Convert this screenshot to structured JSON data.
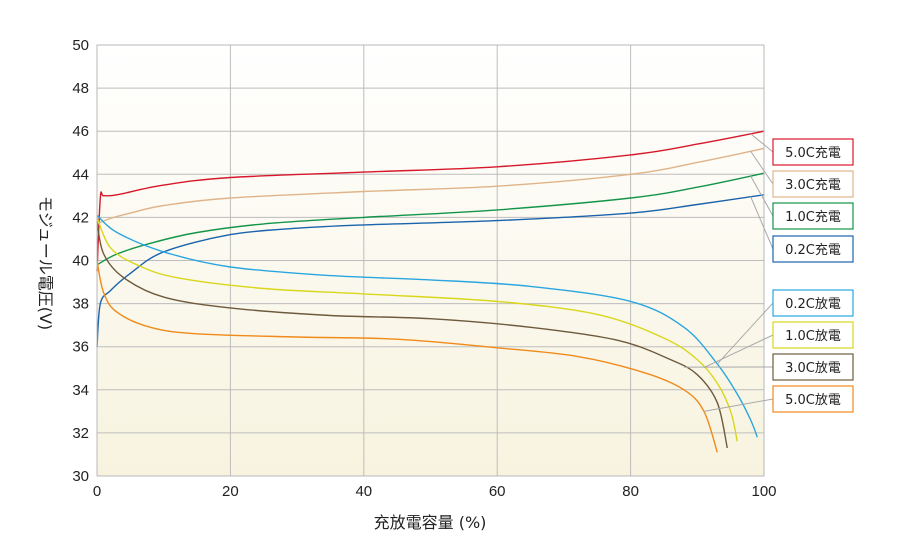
{
  "chart_data": {
    "type": "line",
    "xlabel": "充放電容量 (%)",
    "ylabel": "モジュール電圧(V)",
    "xlim": [
      0,
      100
    ],
    "ylim": [
      30,
      50
    ],
    "x_ticks": [
      0,
      20,
      40,
      60,
      80,
      100
    ],
    "y_ticks": [
      30,
      32,
      34,
      36,
      38,
      40,
      42,
      44,
      46,
      48,
      50
    ],
    "grid": true,
    "legend_position": "right",
    "series": [
      {
        "name": "5.0C充電",
        "color": "#d7182a",
        "group": "charge",
        "points": [
          [
            0,
            39.5
          ],
          [
            0.5,
            42.9
          ],
          [
            1,
            43.0
          ],
          [
            3,
            43.05
          ],
          [
            10,
            43.5
          ],
          [
            20,
            43.85
          ],
          [
            40,
            44.1
          ],
          [
            60,
            44.35
          ],
          [
            80,
            44.9
          ],
          [
            90,
            45.4
          ],
          [
            100,
            46.0
          ]
        ]
      },
      {
        "name": "3.0C充電",
        "color": "#e0b48a",
        "group": "charge",
        "points": [
          [
            0,
            41.7
          ],
          [
            2,
            41.95
          ],
          [
            5,
            42.2
          ],
          [
            10,
            42.55
          ],
          [
            20,
            42.9
          ],
          [
            40,
            43.2
          ],
          [
            60,
            43.45
          ],
          [
            80,
            44.0
          ],
          [
            90,
            44.55
          ],
          [
            100,
            45.2
          ]
        ]
      },
      {
        "name": "1.0C充電",
        "color": "#12954a",
        "group": "charge",
        "points": [
          [
            0,
            39.8
          ],
          [
            3,
            40.3
          ],
          [
            8,
            40.8
          ],
          [
            15,
            41.3
          ],
          [
            25,
            41.7
          ],
          [
            40,
            42.0
          ],
          [
            60,
            42.35
          ],
          [
            80,
            42.9
          ],
          [
            90,
            43.4
          ],
          [
            100,
            44.05
          ]
        ]
      },
      {
        "name": "0.2C充電",
        "color": "#1a63ad",
        "group": "charge",
        "points": [
          [
            0,
            36.0
          ],
          [
            0.5,
            38.0
          ],
          [
            2,
            38.6
          ],
          [
            5,
            39.4
          ],
          [
            10,
            40.4
          ],
          [
            20,
            41.2
          ],
          [
            30,
            41.5
          ],
          [
            40,
            41.65
          ],
          [
            60,
            41.85
          ],
          [
            80,
            42.2
          ],
          [
            90,
            42.6
          ],
          [
            100,
            43.05
          ]
        ]
      },
      {
        "name": "0.2C放電",
        "color": "#2aa6df",
        "group": "discharge",
        "points": [
          [
            0,
            42.1
          ],
          [
            3,
            41.3
          ],
          [
            10,
            40.4
          ],
          [
            20,
            39.7
          ],
          [
            35,
            39.3
          ],
          [
            50,
            39.1
          ],
          [
            65,
            38.8
          ],
          [
            80,
            38.1
          ],
          [
            88,
            36.9
          ],
          [
            93,
            35.2
          ],
          [
            96,
            33.8
          ],
          [
            98,
            32.6
          ],
          [
            99,
            31.8
          ]
        ]
      },
      {
        "name": "1.0C放電",
        "color": "#d9d61c",
        "group": "discharge",
        "points": [
          [
            0,
            42.0
          ],
          [
            2,
            40.6
          ],
          [
            6,
            39.8
          ],
          [
            12,
            39.2
          ],
          [
            25,
            38.7
          ],
          [
            40,
            38.45
          ],
          [
            60,
            38.1
          ],
          [
            75,
            37.5
          ],
          [
            85,
            36.4
          ],
          [
            90,
            35.4
          ],
          [
            93,
            34.3
          ],
          [
            95,
            33.0
          ],
          [
            96,
            31.6
          ]
        ]
      },
      {
        "name": "3.0C放電",
        "color": "#6e5a3c",
        "group": "discharge",
        "points": [
          [
            0,
            41.8
          ],
          [
            1,
            40.3
          ],
          [
            4,
            39.2
          ],
          [
            10,
            38.3
          ],
          [
            20,
            37.8
          ],
          [
            35,
            37.45
          ],
          [
            50,
            37.3
          ],
          [
            65,
            36.9
          ],
          [
            78,
            36.3
          ],
          [
            86,
            35.4
          ],
          [
            90,
            34.7
          ],
          [
            93,
            33.4
          ],
          [
            94.5,
            31.3
          ]
        ]
      },
      {
        "name": "5.0C放電",
        "color": "#f08a1a",
        "group": "discharge",
        "points": [
          [
            0,
            40.0
          ],
          [
            1,
            38.5
          ],
          [
            3,
            37.6
          ],
          [
            8,
            36.9
          ],
          [
            15,
            36.6
          ],
          [
            30,
            36.45
          ],
          [
            45,
            36.35
          ],
          [
            60,
            35.95
          ],
          [
            72,
            35.55
          ],
          [
            82,
            34.8
          ],
          [
            88,
            34.0
          ],
          [
            91,
            33.0
          ],
          [
            93,
            31.1
          ]
        ]
      }
    ]
  }
}
